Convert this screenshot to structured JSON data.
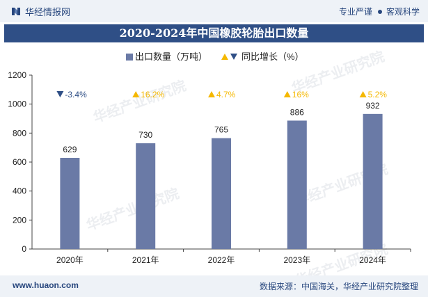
{
  "header": {
    "brand": "华经情报网",
    "tagline_a": "专业严谨",
    "tagline_b": "客观科学"
  },
  "chart_data": {
    "type": "bar",
    "title": "2020-2024年中国橡胶轮胎出口数量",
    "categories": [
      "2020年",
      "2021年",
      "2022年",
      "2023年",
      "2024年"
    ],
    "series": [
      {
        "name": "出口数量（万吨）",
        "values": [
          629,
          730,
          765,
          886,
          932
        ],
        "color": "#6a7aa6"
      },
      {
        "name": "同比增长（%）",
        "values": [
          -3.4,
          16.2,
          4.7,
          16,
          5.2
        ],
        "labels": [
          "-3.4%",
          "16.2%",
          "4.7%",
          "16%",
          "5.2%"
        ]
      }
    ],
    "bar_labels": [
      "629",
      "730",
      "765",
      "886",
      "932"
    ],
    "ylim": [
      0,
      1200
    ],
    "yticks": [
      "0",
      "200",
      "400",
      "600",
      "800",
      "1000",
      "1200"
    ],
    "grid": false,
    "legend_position": "top-center",
    "colors": {
      "up": "#f5b800",
      "down": "#2f4f86",
      "bar": "#6a7aa6"
    }
  },
  "watermark": "华经产业研究院",
  "footer": {
    "site": "www.huaon.com",
    "source": "数据来源：中国海关，华经产业研究院整理"
  }
}
